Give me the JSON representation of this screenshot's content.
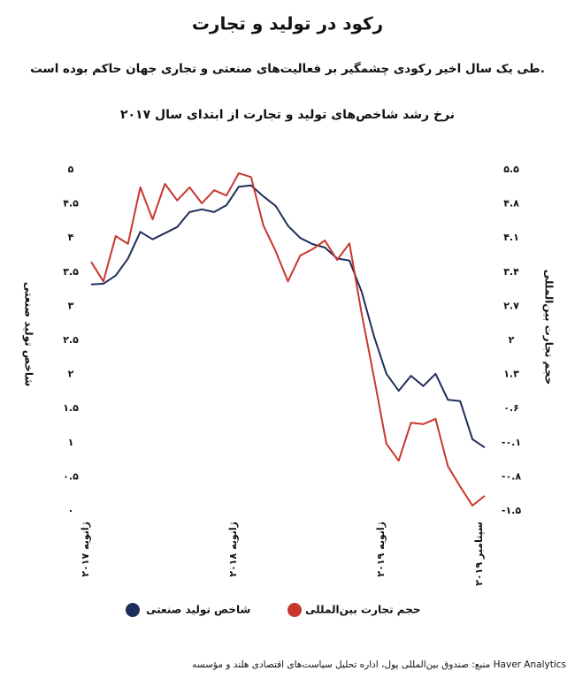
{
  "chart_data": {
    "type": "line",
    "title": "رکود در تولید و تجارت",
    "subtitle": "طی یک سال اخیر رکودی چشمگیر بر فعالیت‌های صنعتی و تجاری جهان حاکم بوده است.",
    "chart_title": "نرخ رشد شاخص‌های تولید و تجارت از ابتدای سال ۲۰۱۷",
    "y_label": "شاخص تولید صنعتی",
    "y2_label": "حجم تجارت بین‌المللی",
    "source": "منبع: صندوق بین‌المللی پول، اداره تحلیل سیاست‌های اقتصادی هلند و مؤسسه Haver Analytics",
    "categories": [
      "ژانویه ۲۰۱۷",
      null,
      null,
      null,
      null,
      null,
      null,
      null,
      null,
      null,
      null,
      null,
      "ژانویه ۲۰۱۸",
      null,
      null,
      null,
      null,
      null,
      null,
      null,
      null,
      null,
      null,
      null,
      "ژانویه ۲۰۱۹",
      null,
      null,
      null,
      null,
      null,
      null,
      null,
      "سپتامبر ۲۰۱۹"
    ],
    "series": [
      {
        "name": "شاخص تولید صنعتی",
        "color": "#1f2d5c",
        "values": [
          3.32,
          3.33,
          3.45,
          3.7,
          4.09,
          3.98,
          4.07,
          4.16,
          4.38,
          4.42,
          4.38,
          4.48,
          4.75,
          4.77,
          4.61,
          4.47,
          4.18,
          4.0,
          3.91,
          3.86,
          3.7,
          3.67,
          3.21,
          2.56,
          2.01,
          1.76,
          1.98,
          1.83,
          2.01,
          1.63,
          1.61,
          1.05,
          0.93
        ]
      },
      {
        "name": "حجم تجارت بین‌المللی",
        "color": "#c8372d",
        "axis": "y2",
        "values": [
          3.61,
          3.21,
          4.14,
          3.98,
          5.14,
          4.48,
          5.21,
          4.87,
          5.14,
          4.81,
          5.08,
          4.97,
          5.43,
          5.35,
          4.36,
          3.83,
          3.21,
          3.74,
          3.87,
          4.05,
          3.65,
          3.99,
          2.54,
          1.24,
          -0.12,
          -0.47,
          0.31,
          0.28,
          0.39,
          -0.58,
          -1.0,
          -1.39,
          -1.19
        ]
      }
    ],
    "ylim": [
      0,
      5
    ],
    "yticks": [
      {
        "value": 0,
        "label": "۰"
      },
      {
        "value": 0.5,
        "label": "۰.۵"
      },
      {
        "value": 1,
        "label": "۱"
      },
      {
        "value": 1.5,
        "label": "۱.۵"
      },
      {
        "value": 2,
        "label": "۲"
      },
      {
        "value": 2.5,
        "label": "۲.۵"
      },
      {
        "value": 3,
        "label": "۳"
      },
      {
        "value": 3.5,
        "label": "۳.۵"
      },
      {
        "value": 4,
        "label": "۴"
      },
      {
        "value": 4.5,
        "label": "۴.۵"
      },
      {
        "value": 5,
        "label": "۵"
      }
    ],
    "y2lim": [
      -1.5,
      5.5
    ],
    "y2ticks": [
      {
        "value": -1.5,
        "label": "-۱.۵"
      },
      {
        "value": -0.8,
        "label": "-۰.۸"
      },
      {
        "value": -0.1,
        "label": "-۰.۱"
      },
      {
        "value": 0.6,
        "label": "۰.۶"
      },
      {
        "value": 1.3,
        "label": "۱.۳"
      },
      {
        "value": 2,
        "label": "۲"
      },
      {
        "value": 2.7,
        "label": "۲.۷"
      },
      {
        "value": 3.4,
        "label": "۳.۴"
      },
      {
        "value": 4.1,
        "label": "۴.۱"
      },
      {
        "value": 4.8,
        "label": "۴.۸"
      },
      {
        "value": 5.5,
        "label": "۵.۵"
      }
    ],
    "grid": false
  }
}
